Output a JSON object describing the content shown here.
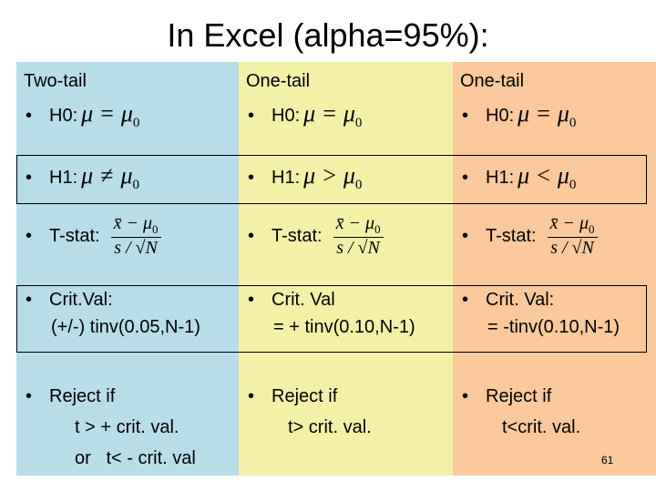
{
  "title": "In Excel (alpha=95%):",
  "columns": [
    {
      "header": "Two-tail",
      "h0": {
        "label": "H0:",
        "formula": {
          "left": "μ",
          "op": "=",
          "right": "μ",
          "sub": "0"
        }
      },
      "h1": {
        "label": "H1:",
        "formula": {
          "left": "μ",
          "op": "≠",
          "right": "μ",
          "sub": "0"
        }
      },
      "tstat": {
        "label": "T-stat:",
        "numerator": "x̄ − μ",
        "numerator_sub": "0",
        "denominator": "s / √N"
      },
      "crit": [
        "Crit.Val:",
        "(+/-) tinv(0.05,N-1)"
      ],
      "reject": [
        "Reject if",
        "t > + crit. val.",
        "or   t< - crit. val"
      ]
    },
    {
      "header": "One-tail",
      "h0": {
        "label": "H0:",
        "formula": {
          "left": "μ",
          "op": "=",
          "right": "μ",
          "sub": "0"
        }
      },
      "h1": {
        "label": "H1:",
        "formula": {
          "left": "μ",
          "op": ">",
          "right": "μ",
          "sub": "0"
        }
      },
      "tstat": {
        "label": "T-stat:",
        "numerator": "x̄ − μ",
        "numerator_sub": "0",
        "denominator": "s / √N"
      },
      "crit": [
        "Crit. Val",
        "= + tinv(0.10,N-1)"
      ],
      "reject": [
        "Reject if",
        "t> crit. val."
      ]
    },
    {
      "header": "One-tail",
      "h0": {
        "label": "H0:",
        "formula": {
          "left": "μ",
          "op": "=",
          "right": "μ",
          "sub": "0"
        }
      },
      "h1": {
        "label": "H1:",
        "formula": {
          "left": "μ",
          "op": "<",
          "right": "μ",
          "sub": "0"
        }
      },
      "tstat": {
        "label": "T-stat:",
        "numerator": "x̄ − μ",
        "numerator_sub": "0",
        "denominator": "s / √N"
      },
      "crit": [
        "Crit. Val:",
        "= -tinv(0.10,N-1)"
      ],
      "reject": [
        "Reject if",
        "t<crit. val."
      ]
    }
  ],
  "page_number": "61"
}
